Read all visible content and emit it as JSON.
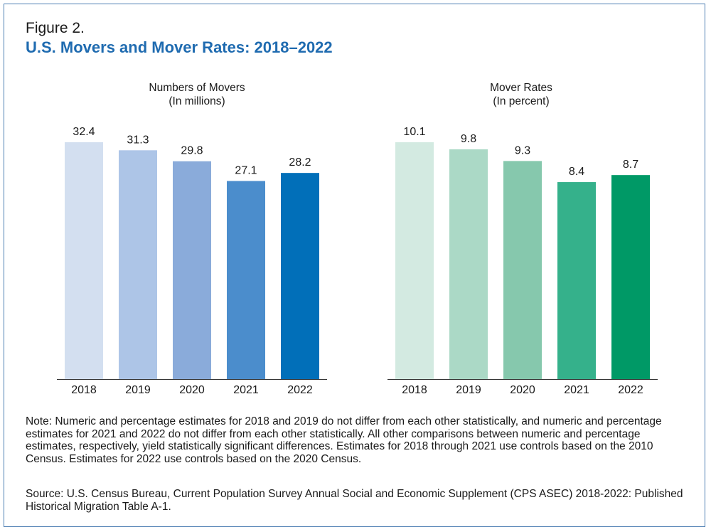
{
  "figure": {
    "label": "Figure 2.",
    "title": "U.S. Movers and Mover Rates: 2018–2022"
  },
  "colors": {
    "title": "#1f6bb0",
    "border": "#4e7fb3",
    "movers_bars": [
      "#d3dff0",
      "#adc5e7",
      "#8aabda",
      "#4b8dcc",
      "#016fb9"
    ],
    "rates_bars": [
      "#d3eae1",
      "#abd9c6",
      "#86c8ad",
      "#35b18b",
      "#009966"
    ]
  },
  "chart_data": [
    {
      "type": "bar",
      "title": "Numbers of Movers",
      "subtitle": "(In millions)",
      "categories": [
        "2018",
        "2019",
        "2020",
        "2021",
        "2022"
      ],
      "values": [
        32.4,
        31.3,
        29.8,
        27.1,
        28.2
      ],
      "value_labels": [
        "32.4",
        "31.3",
        "29.8",
        "27.1",
        "28.2"
      ],
      "ylim": [
        0,
        32.4
      ],
      "grid": false,
      "legend": "none"
    },
    {
      "type": "bar",
      "title": "Mover Rates",
      "subtitle": "(In percent)",
      "categories": [
        "2018",
        "2019",
        "2020",
        "2021",
        "2022"
      ],
      "values": [
        10.1,
        9.8,
        9.3,
        8.4,
        8.7
      ],
      "value_labels": [
        "10.1",
        "9.8",
        "9.3",
        "8.4",
        "8.7"
      ],
      "ylim": [
        0,
        10.1
      ],
      "grid": false,
      "legend": "none"
    }
  ],
  "note": "Note: Numeric and percentage estimates for 2018 and 2019 do not differ from each other statistically, and numeric and percentage estimates for 2021 and 2022 do not differ from each other statistically. All other comparisons between numeric and percentage estimates, respectively, yield statistically significant differences. Estimates for 2018 through 2021 use controls based on the 2010 Census. Estimates for 2022 use controls based on the 2020 Census.",
  "source": "Source: U.S. Census Bureau, Current Population Survey Annual Social and Economic Supplement (CPS ASEC) 2018-2022: Published Historical Migration Table A-1."
}
